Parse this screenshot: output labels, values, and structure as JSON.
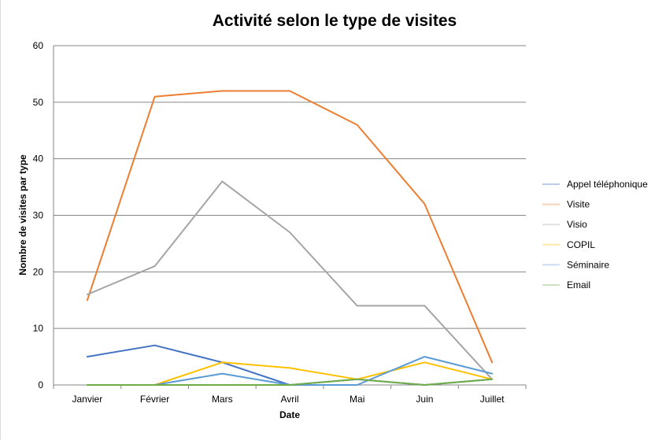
{
  "chart_data": {
    "type": "line",
    "title": "Activité selon le type de visites",
    "xlabel": "Date",
    "ylabel": "Nombre de visites par type",
    "categories": [
      "Janvier",
      "Février",
      "Mars",
      "Avril",
      "Mai",
      "Juin",
      "Juillet"
    ],
    "ylim": [
      0,
      60
    ],
    "yticks": [
      0,
      10,
      20,
      30,
      40,
      50,
      60
    ],
    "grid": true,
    "legend_position": "right",
    "series": [
      {
        "name": "Appel téléphonique",
        "color": "#4472c4",
        "values": [
          5,
          7,
          4,
          0,
          1,
          0,
          1
        ]
      },
      {
        "name": "Visite",
        "color": "#ed7d31",
        "values": [
          15,
          51,
          52,
          52,
          46,
          32,
          4
        ]
      },
      {
        "name": "Visio",
        "color": "#a5a5a5",
        "values": [
          16,
          21,
          36,
          27,
          14,
          14,
          1
        ]
      },
      {
        "name": "COPIL",
        "color": "#ffc000",
        "values": [
          0,
          0,
          4,
          3,
          1,
          4,
          1
        ]
      },
      {
        "name": "Séminaire",
        "color": "#5b9bd5",
        "values": [
          0,
          0,
          2,
          0,
          0,
          5,
          2
        ]
      },
      {
        "name": "Email",
        "color": "#70ad47",
        "values": [
          0,
          0,
          0,
          0,
          1,
          0,
          1
        ]
      }
    ]
  }
}
